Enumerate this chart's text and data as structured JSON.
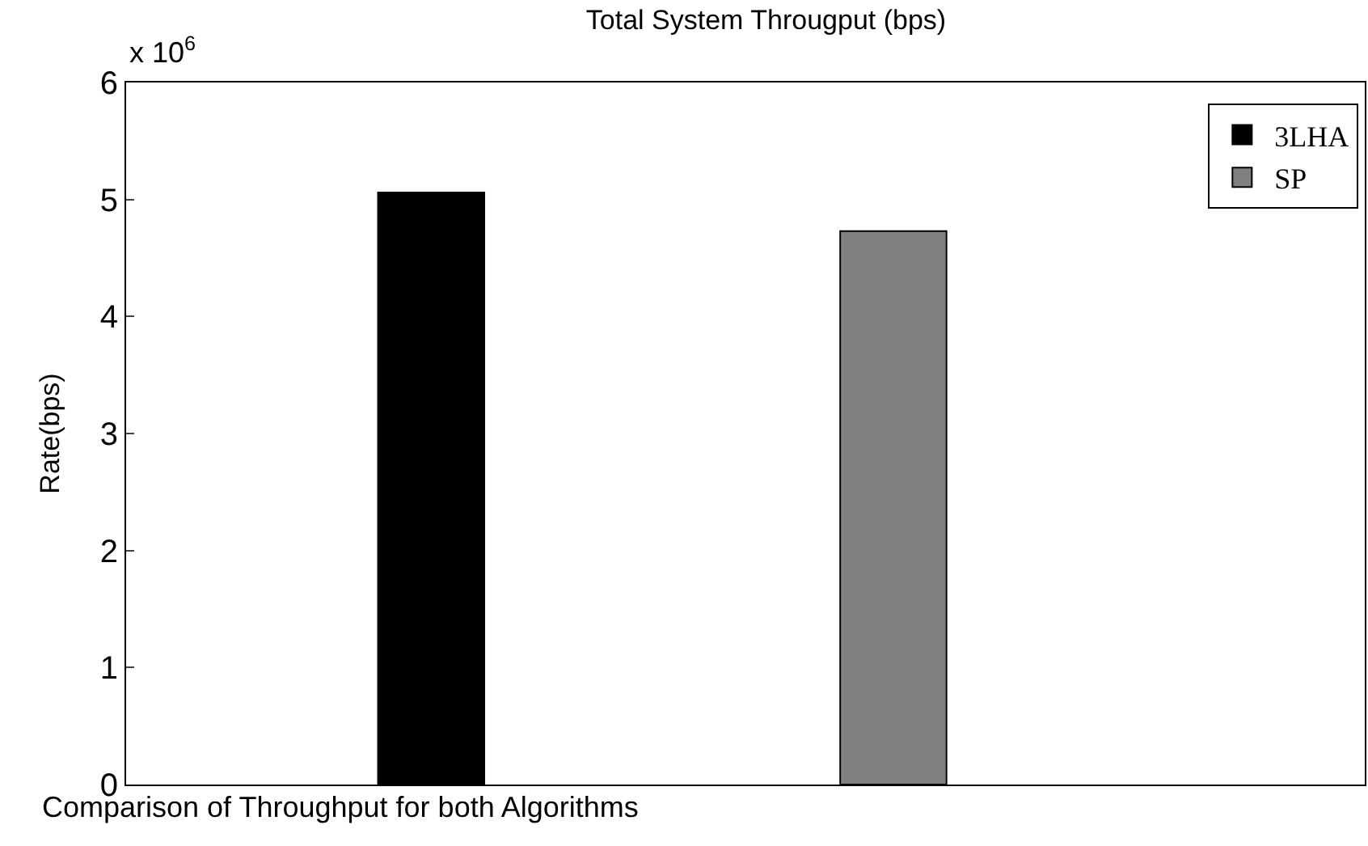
{
  "chart_data": {
    "type": "bar",
    "title": "Total System Througput (bps)",
    "ylabel": "Rate(bps)",
    "xlabel": "Comparison of Throughput for both Algorithms",
    "annotations": [
      "x 10$^{6}$"
    ],
    "categories": [
      null,
      null
    ],
    "series": [
      {
        "name": "3LHA",
        "color": "#000000",
        "values": [
          5.06,
          null
        ]
      },
      {
        "name": "SP",
        "color": "#808080",
        "values": [
          null,
          4.73
        ]
      }
    ],
    "ylim": [
      0,
      6
    ],
    "yticks": [
      0,
      1,
      2,
      3,
      4,
      5,
      6
    ],
    "legend": "top right"
  }
}
